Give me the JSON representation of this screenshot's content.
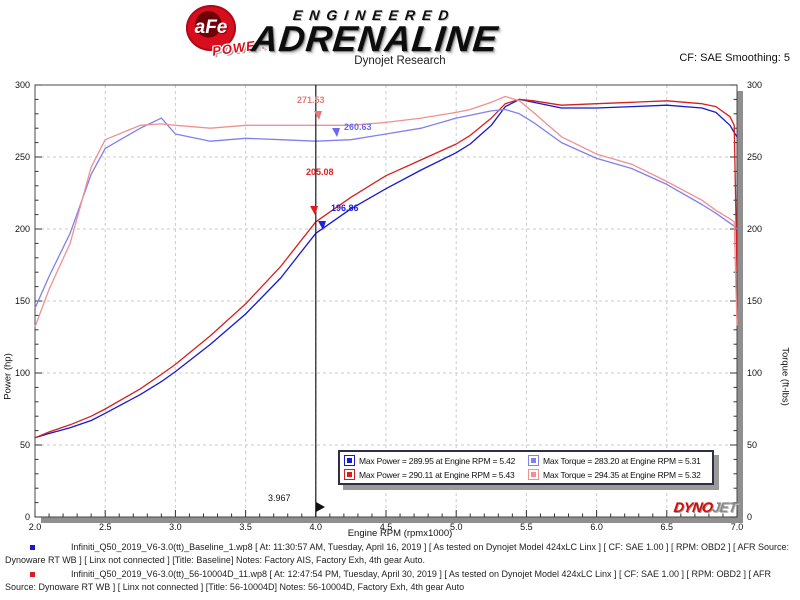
{
  "header": {
    "badge_text": "aFe",
    "badge_sub": "POWER",
    "brand_line1": "ENGINEERED",
    "brand_line2": "ADRENALINE",
    "subtitle": "Dynojet Research",
    "smoothing": "CF: SAE Smoothing: 5"
  },
  "chart_data": {
    "type": "line",
    "xlabel": "Engine RPM (rpmx1000)",
    "ylabel_left": "Power (hp)",
    "ylabel_right": "Torque (ft-lbs)",
    "xlim": [
      2.0,
      7.0
    ],
    "ylim": [
      0,
      300
    ],
    "x_ticks": [
      "2.0",
      "2.5",
      "3.0",
      "3.5",
      "4.0",
      "4.5",
      "5.0",
      "5.5",
      "6.0",
      "6.5",
      "7.0"
    ],
    "y_ticks": [
      "0",
      "50",
      "100",
      "150",
      "200",
      "250",
      "300"
    ],
    "grid": true,
    "x": [
      2.0,
      2.1,
      2.25,
      2.4,
      2.5,
      2.75,
      2.9,
      3.0,
      3.25,
      3.5,
      3.75,
      4.0,
      4.25,
      4.5,
      4.75,
      5.0,
      5.1,
      5.25,
      5.35,
      5.45,
      5.55,
      5.75,
      6.0,
      6.25,
      6.5,
      6.75,
      6.85,
      6.95,
      6.98,
      7.0
    ],
    "series": [
      {
        "name": "Power Baseline",
        "unit": "hp",
        "color": "#1818cf",
        "values": [
          55,
          58,
          62,
          67,
          72,
          85,
          94,
          101,
          120,
          141,
          166,
          197,
          214,
          228,
          241,
          253,
          259,
          272,
          285,
          290,
          288,
          284,
          284,
          285,
          286,
          284,
          281,
          272,
          267,
          264
        ]
      },
      {
        "name": "Power 56-10004D",
        "unit": "hp",
        "color": "#d42020",
        "values": [
          55,
          59,
          64,
          70,
          75,
          89,
          99,
          106,
          126,
          148,
          174,
          205,
          222,
          237,
          248,
          259,
          265,
          277,
          287,
          290,
          289,
          286,
          287,
          288,
          289,
          287,
          285,
          278,
          272,
          170
        ]
      },
      {
        "name": "Torque Baseline",
        "unit": "ft-lbs",
        "color": "#8080ee",
        "values": [
          145,
          167,
          197,
          238,
          256,
          270,
          277,
          266,
          261,
          263,
          262,
          261,
          262,
          266,
          270,
          277,
          279,
          282,
          283,
          280,
          274,
          260,
          249,
          242,
          231,
          217,
          211,
          204,
          202,
          200
        ]
      },
      {
        "name": "Torque 56-10004D",
        "unit": "ft-lbs",
        "color": "#f09090",
        "values": [
          132,
          158,
          190,
          243,
          262,
          272,
          273,
          272,
          270,
          272,
          272,
          272,
          272,
          274,
          277,
          281,
          283,
          288,
          292,
          289,
          281,
          264,
          252,
          245,
          233,
          220,
          213,
          207,
          205,
          133
        ]
      }
    ],
    "cursor": {
      "x": 4.0,
      "x_label": "3.967",
      "readouts": [
        {
          "label": "271.53",
          "series": "Torque 56-10004D",
          "color": "#e87878"
        },
        {
          "label": "260.63",
          "series": "Torque Baseline",
          "color": "#6a6af0"
        },
        {
          "label": "205.08",
          "series": "Power 56-10004D",
          "color": "#e02020"
        },
        {
          "label": "196.86",
          "series": "Power Baseline",
          "color": "#2020e0"
        }
      ]
    },
    "legend": [
      {
        "swatch": "#1818cf",
        "text": "Max Power = 289.95 at Engine RPM = 5.42"
      },
      {
        "swatch": "#8080ee",
        "text": "Max Torque = 283.20 at Engine RPM = 5.31"
      },
      {
        "swatch": "#d42020",
        "text": "Max Power = 290.11 at Engine RPM = 5.43"
      },
      {
        "swatch": "#f09090",
        "text": "Max Torque = 294.35 at Engine RPM = 5.32"
      }
    ],
    "watermark": {
      "part1": "DYNO",
      "part2": "JET"
    }
  },
  "footer": {
    "runs": [
      {
        "bullet_color": "#1818cf",
        "text": "Infiniti_Q50_2019_V6-3.0(tt)_Baseline_1.wp8 [ At: 11:30:57 AM, Tuesday, April 16, 2019 ] [ As tested on Dynojet Model 424xLC Linx ] [ CF: SAE 1.00 ] [ RPM: OBD2 ] [ AFR Source: Dynoware RT WB ] [ Linx not connected ] [Title: Baseline]  Notes: Factory AIS, Factory Exh, 4th gear Auto."
      },
      {
        "bullet_color": "#d42020",
        "text": "Infiniti_Q50_2019_V6-3.0(tt)_56-10004D_11.wp8 [ At: 12:47:54 PM, Tuesday, April 30, 2019 ] [ As tested on Dynojet Model 424xLC Linx ] [ CF: SAE 1.00 ] [ RPM: OBD2 ] [ AFR Source: Dynoware RT WB ] [ Linx not connected ] [Title: 56-10004D]  Notes: 56-10004D, Factory Exh, 4th gear Auto"
      }
    ]
  }
}
